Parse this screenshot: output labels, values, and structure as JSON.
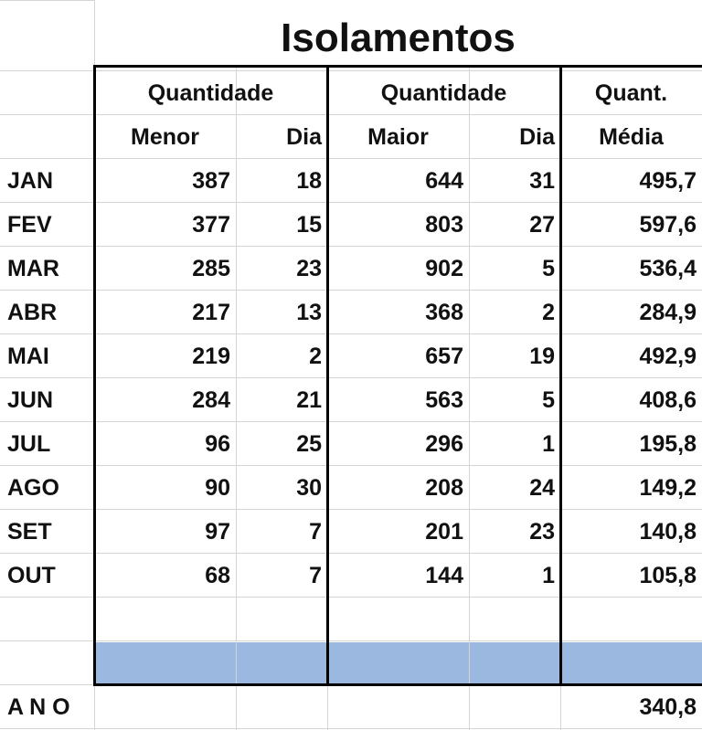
{
  "title": "Isolamentos",
  "header_top": [
    "Quantidade",
    "Quantidade",
    "Quant."
  ],
  "header_bottom": [
    "Menor",
    "Dia",
    "Maior",
    "Dia",
    "Média"
  ],
  "rows": [
    {
      "month": "JAN",
      "cells": [
        "387",
        "18",
        "644",
        "31",
        "495,7"
      ]
    },
    {
      "month": "FEV",
      "cells": [
        "377",
        "15",
        "803",
        "27",
        "597,6"
      ]
    },
    {
      "month": "MAR",
      "cells": [
        "285",
        "23",
        "902",
        "5",
        "536,4"
      ]
    },
    {
      "month": "ABR",
      "cells": [
        "217",
        "13",
        "368",
        "2",
        "284,9"
      ]
    },
    {
      "month": "MAI",
      "cells": [
        "219",
        "2",
        "657",
        "19",
        "492,9"
      ]
    },
    {
      "month": "JUN",
      "cells": [
        "284",
        "21",
        "563",
        "5",
        "408,6"
      ]
    },
    {
      "month": "JUL",
      "cells": [
        "96",
        "25",
        "296",
        "1",
        "195,8"
      ]
    },
    {
      "month": "AGO",
      "cells": [
        "90",
        "30",
        "208",
        "24",
        "149,2"
      ]
    },
    {
      "month": "SET",
      "cells": [
        "97",
        "7",
        "201",
        "23",
        "140,8"
      ]
    },
    {
      "month": "OUT",
      "cells": [
        "68",
        "7",
        "144",
        "1",
        "105,8"
      ]
    }
  ],
  "total": {
    "label": "A N O",
    "value": "340,8"
  }
}
